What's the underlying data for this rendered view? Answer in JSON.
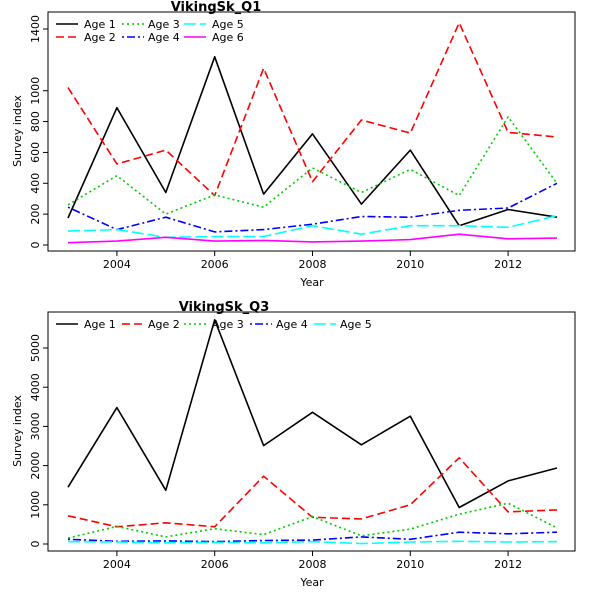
{
  "chart_data": [
    {
      "type": "line",
      "title": "VikingSk_Q1",
      "xlabel": "Year",
      "ylabel": "Survey index",
      "xlim": [
        2003,
        2013
      ],
      "ylim": [
        0,
        1450
      ],
      "x_ticks": [
        2004,
        2006,
        2008,
        2010,
        2012
      ],
      "y_ticks": [
        0,
        200,
        400,
        600,
        800,
        1000,
        1400
      ],
      "legend_position": "top-left",
      "x": [
        2003,
        2004,
        2005,
        2006,
        2007,
        2008,
        2009,
        2010,
        2011,
        2012,
        2013
      ],
      "series": [
        {
          "name": "Age 1",
          "color": "#000000",
          "dash": "solid",
          "values": [
            175,
            890,
            340,
            1220,
            330,
            720,
            265,
            615,
            125,
            230,
            180
          ]
        },
        {
          "name": "Age 2",
          "color": "#ff0000",
          "dash": "dashed",
          "values": [
            1020,
            525,
            615,
            320,
            1145,
            410,
            810,
            725,
            1440,
            730,
            700
          ]
        },
        {
          "name": "Age 3",
          "color": "#00cd00",
          "dash": "dotted",
          "values": [
            260,
            450,
            200,
            325,
            245,
            500,
            340,
            490,
            320,
            830,
            400
          ]
        },
        {
          "name": "Age 4",
          "color": "#0000ff",
          "dash": "dotdash",
          "values": [
            245,
            100,
            180,
            85,
            100,
            135,
            185,
            180,
            225,
            240,
            400
          ]
        },
        {
          "name": "Age 5",
          "color": "#00ffff",
          "dash": "longdash",
          "values": [
            90,
            100,
            50,
            55,
            55,
            125,
            70,
            125,
            125,
            115,
            190
          ]
        },
        {
          "name": "Age 6",
          "color": "#ff00ff",
          "dash": "solid",
          "values": [
            15,
            25,
            50,
            25,
            30,
            20,
            25,
            35,
            70,
            40,
            45
          ]
        }
      ]
    },
    {
      "type": "line",
      "title": "VikingSk_Q3",
      "xlabel": "Year",
      "ylabel": "Survey index",
      "xlim": [
        2003,
        2013
      ],
      "ylim": [
        0,
        5700
      ],
      "x_ticks": [
        2004,
        2006,
        2008,
        2010,
        2012
      ],
      "y_ticks": [
        0,
        1000,
        2000,
        3000,
        4000,
        5000
      ],
      "legend_position": "top",
      "x": [
        2003,
        2004,
        2005,
        2006,
        2007,
        2008,
        2009,
        2010,
        2011,
        2012,
        2013
      ],
      "series": [
        {
          "name": "Age 1",
          "color": "#000000",
          "dash": "solid",
          "values": [
            1450,
            3480,
            1370,
            5720,
            2510,
            3360,
            2530,
            3260,
            930,
            1610,
            1940
          ]
        },
        {
          "name": "Age 2",
          "color": "#ff0000",
          "dash": "dashed",
          "values": [
            720,
            440,
            540,
            440,
            1730,
            680,
            640,
            1000,
            2200,
            820,
            870
          ]
        },
        {
          "name": "Age 3",
          "color": "#00cd00",
          "dash": "dotted",
          "values": [
            150,
            450,
            180,
            390,
            240,
            700,
            210,
            380,
            760,
            1040,
            410
          ]
        },
        {
          "name": "Age 4",
          "color": "#0000ff",
          "dash": "dotdash",
          "values": [
            120,
            70,
            80,
            60,
            90,
            100,
            180,
            120,
            300,
            260,
            300
          ]
        },
        {
          "name": "Age 5",
          "color": "#00ffff",
          "dash": "longdash",
          "values": [
            60,
            50,
            30,
            40,
            30,
            60,
            10,
            50,
            70,
            50,
            60
          ]
        }
      ]
    }
  ]
}
